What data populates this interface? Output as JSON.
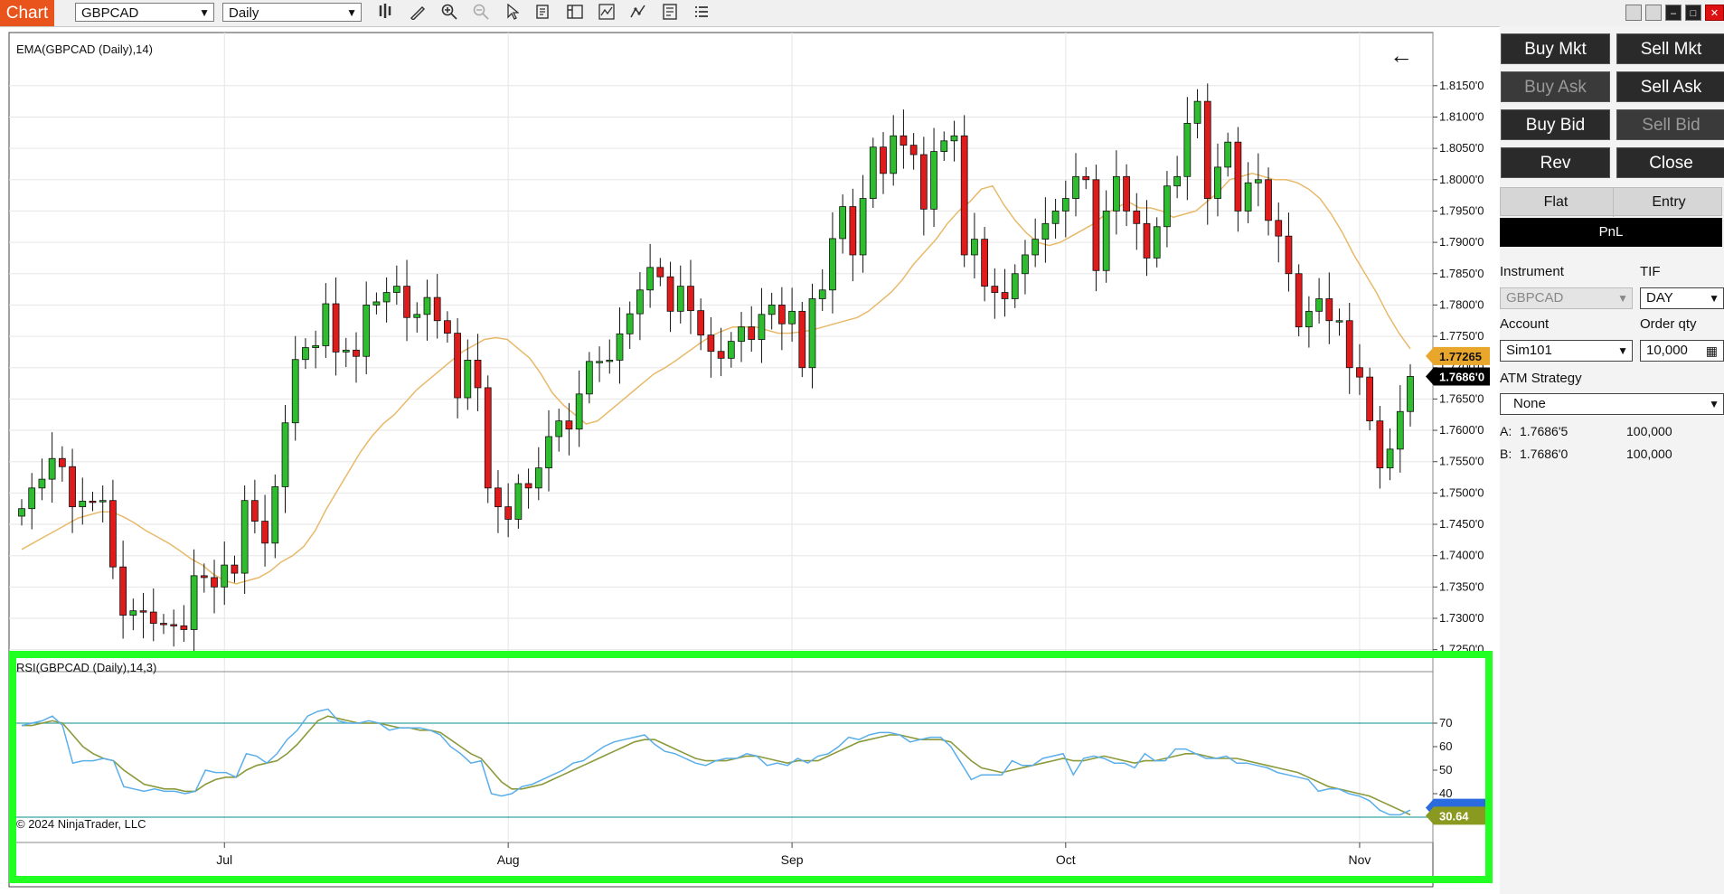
{
  "toolbar": {
    "chart_tab": "Chart",
    "instrument": "GBPCAD",
    "interval": "Daily"
  },
  "chart": {
    "ema_label": "EMA(GBPCAD (Daily),14)",
    "rsi_label": "RSI(GBPCAD (Daily),14,3)",
    "copyright": "© 2024 NinjaTrader, LLC",
    "price_marker_ema": "1.77265",
    "price_marker_last": "1.7686'0",
    "rsi_marker": "30.64",
    "colors": {
      "up": "#2ebd2e",
      "down": "#e01b1b",
      "ema": "#e8b96a",
      "rsi": "#5aaeea",
      "rsi_avg": "#8a9a3a",
      "marker_ema": "#e8a72a",
      "marker_rsi": "#8a9a20"
    }
  },
  "chart_data": {
    "type": "candlestick",
    "instrument": "GBPCAD",
    "interval": "Daily",
    "x_tick_labels": [
      "Jul",
      "Aug",
      "Sep",
      "Oct",
      "Nov"
    ],
    "price_axis_ticks": [
      "1.8150'0",
      "1.8100'0",
      "1.8050'0",
      "1.8000'0",
      "1.7950'0",
      "1.7900'0",
      "1.7850'0",
      "1.7800'0",
      "1.7750'0",
      "1.7700'0",
      "1.7650'0",
      "1.7600'0",
      "1.7550'0",
      "1.7500'0",
      "1.7450'0",
      "1.7400'0",
      "1.7350'0",
      "1.7300'0",
      "1.7250'0"
    ],
    "price_axis_values": [
      1.815,
      1.81,
      1.805,
      1.8,
      1.795,
      1.79,
      1.785,
      1.78,
      1.775,
      1.77,
      1.765,
      1.76,
      1.755,
      1.75,
      1.745,
      1.74,
      1.735,
      1.73,
      1.725
    ],
    "ylim": [
      1.7225,
      1.818
    ],
    "closes": [
      1.7475,
      1.7508,
      1.7522,
      1.7555,
      1.7542,
      1.7478,
      1.7487,
      1.7486,
      1.7488,
      1.7382,
      1.7305,
      1.7312,
      1.731,
      1.7292,
      1.729,
      1.7288,
      1.7282,
      1.7368,
      1.7365,
      1.735,
      1.7385,
      1.7372,
      1.7488,
      1.7455,
      1.742,
      1.751,
      1.7612,
      1.7713,
      1.7732,
      1.7735,
      1.7802,
      1.7725,
      1.7728,
      1.7718,
      1.78,
      1.7805,
      1.782,
      1.783,
      1.778,
      1.7785,
      1.7812,
      1.7775,
      1.7755,
      1.7652,
      1.7712,
      1.7668,
      1.7508,
      1.7478,
      1.7458,
      1.7515,
      1.7508,
      1.754,
      1.759,
      1.7615,
      1.7602,
      1.7658,
      1.771,
      1.771,
      1.7712,
      1.7754,
      1.7786,
      1.7824,
      1.786,
      1.7845,
      1.779,
      1.783,
      1.7791,
      1.7752,
      1.7726,
      1.7715,
      1.7742,
      1.7765,
      1.7745,
      1.7785,
      1.78,
      1.777,
      1.779,
      1.77,
      1.781,
      1.7824,
      1.7906,
      1.7957,
      1.788,
      1.797,
      1.8052,
      1.801,
      1.807,
      1.8055,
      1.804,
      1.7953,
      1.8045,
      1.8062,
      1.807,
      1.788,
      1.7905,
      1.783,
      1.782,
      1.781,
      1.785,
      1.788,
      1.7905,
      1.793,
      1.795,
      1.797,
      1.8005,
      1.8,
      1.7855,
      1.795,
      1.8005,
      1.795,
      1.793,
      1.7875,
      1.7925,
      1.799,
      1.8005,
      1.809,
      1.8125,
      1.797,
      1.802,
      1.806,
      1.795,
      1.7995,
      1.8,
      1.7935,
      1.791,
      1.785,
      1.7765,
      1.779,
      1.781,
      1.7775,
      1.7775,
      1.77,
      1.7685,
      1.7615,
      1.754,
      1.757,
      1.763,
      1.7686
    ],
    "ema_14": [
      1.741,
      1.742,
      1.743,
      1.744,
      1.745,
      1.746,
      1.7465,
      1.747,
      1.747,
      1.7462,
      1.7452,
      1.744,
      1.743,
      1.742,
      1.7408,
      1.7395,
      1.7385,
      1.737,
      1.736,
      1.7355,
      1.736,
      1.7365,
      1.7375,
      1.739,
      1.74,
      1.7415,
      1.744,
      1.7475,
      1.7505,
      1.7535,
      1.7565,
      1.759,
      1.761,
      1.7625,
      1.7645,
      1.7665,
      1.768,
      1.7695,
      1.771,
      1.7725,
      1.7735,
      1.7745,
      1.7748,
      1.7745,
      1.773,
      1.7715,
      1.769,
      1.766,
      1.764,
      1.7625,
      1.761,
      1.7615,
      1.763,
      1.7645,
      1.766,
      1.7675,
      1.769,
      1.77,
      1.7712,
      1.7725,
      1.7738,
      1.775,
      1.7758,
      1.7765,
      1.7765,
      1.7765,
      1.776,
      1.7755,
      1.7755,
      1.7757,
      1.776,
      1.7765,
      1.777,
      1.7775,
      1.778,
      1.779,
      1.7805,
      1.782,
      1.784,
      1.7865,
      1.7885,
      1.7905,
      1.793,
      1.795,
      1.7965,
      1.7985,
      1.799,
      1.796,
      1.7935,
      1.7915,
      1.79,
      1.7895,
      1.79,
      1.791,
      1.792,
      1.793,
      1.7945,
      1.7955,
      1.7965,
      1.7955,
      1.7955,
      1.795,
      1.794,
      1.7945,
      1.795,
      1.7965,
      1.798,
      1.8,
      1.8005,
      1.801,
      1.8005,
      1.8,
      1.8,
      1.7995,
      1.7985,
      1.797,
      1.7945,
      1.7915,
      1.788,
      1.785,
      1.782,
      1.7785,
      1.7755,
      1.773
    ],
    "rsi_axis_ticks": [
      70,
      60,
      50,
      40
    ],
    "rsi_levels": [
      70,
      30
    ],
    "rsi": [
      69,
      70,
      71,
      73,
      69,
      53,
      54,
      54,
      55,
      54,
      43,
      42,
      41,
      42,
      41,
      41,
      40,
      41,
      50,
      49,
      49,
      47,
      57,
      56,
      53,
      57,
      63,
      67,
      73,
      75,
      76,
      71,
      70,
      70,
      71,
      70,
      67,
      68,
      68,
      68,
      67,
      65,
      60,
      57,
      53,
      54,
      40,
      39,
      40,
      43,
      44,
      46,
      48,
      50,
      53,
      54,
      57,
      60,
      62,
      63,
      64,
      65,
      61,
      58,
      57,
      55,
      53,
      52,
      54,
      55,
      55,
      57,
      56,
      52,
      53,
      52,
      55,
      53,
      56,
      57,
      60,
      64,
      63,
      65,
      66,
      66,
      65,
      62,
      63,
      64,
      64,
      60,
      53,
      46,
      48,
      48,
      48,
      54,
      52,
      52,
      55,
      56,
      57,
      48,
      55,
      56,
      55,
      53,
      53,
      51,
      57,
      54,
      54,
      59,
      59,
      57,
      55,
      55,
      56,
      53,
      53,
      52,
      51,
      49,
      48,
      47,
      46,
      41,
      42,
      42,
      40,
      39,
      37,
      33,
      31,
      31,
      33
    ],
    "rsi_avg": [
      69,
      69,
      70,
      71,
      70,
      65,
      60,
      57,
      55,
      54,
      50,
      47,
      44,
      43,
      42,
      42,
      41,
      41,
      44,
      46,
      47,
      47,
      50,
      52,
      53,
      54,
      57,
      61,
      66,
      71,
      73,
      72,
      71,
      70,
      70,
      70,
      69,
      68,
      68,
      67,
      67,
      66,
      63,
      60,
      57,
      55,
      50,
      45,
      42,
      42,
      43,
      44,
      46,
      48,
      50,
      52,
      54,
      56,
      58,
      60,
      62,
      63,
      63,
      61,
      59,
      57,
      55,
      54,
      54,
      54,
      55,
      56,
      56,
      55,
      54,
      53,
      54,
      54,
      54,
      56,
      58,
      60,
      62,
      63,
      64,
      65,
      65,
      64,
      63,
      63,
      63,
      62,
      58,
      54,
      51,
      50,
      49,
      50,
      51,
      52,
      53,
      54,
      55,
      54,
      54,
      55,
      56,
      55,
      54,
      53,
      54,
      54,
      55,
      56,
      57,
      57,
      56,
      55,
      55,
      55,
      54,
      53,
      52,
      51,
      50,
      49,
      47,
      45,
      43,
      42,
      41,
      40,
      39,
      37,
      35,
      33,
      31
    ]
  },
  "panel": {
    "buy_mkt": "Buy Mkt",
    "sell_mkt": "Sell Mkt",
    "buy_ask": "Buy Ask",
    "sell_ask": "Sell Ask",
    "buy_bid": "Buy Bid",
    "sell_bid": "Sell Bid",
    "rev": "Rev",
    "close": "Close",
    "flat": "Flat",
    "entry": "Entry",
    "pnl": "PnL",
    "instrument_label": "Instrument",
    "instrument_value": "GBPCAD",
    "tif_label": "TIF",
    "tif_value": "DAY",
    "account_label": "Account",
    "account_value": "Sim101",
    "order_qty_label": "Order qty",
    "order_qty_value": "10,000",
    "atm_label": "ATM Strategy",
    "atm_value": "None",
    "ask_label": "A:",
    "ask_price": "1.7686'5",
    "ask_size": "100,000",
    "bid_label": "B:",
    "bid_price": "1.7686'0",
    "bid_size": "100,000"
  }
}
